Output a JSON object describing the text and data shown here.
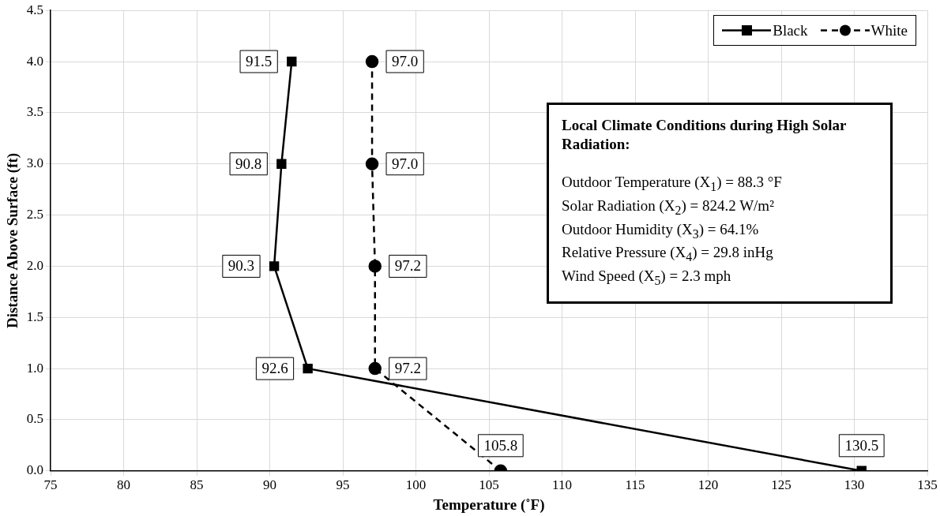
{
  "chart_data": {
    "type": "line",
    "xlabel": "Temperature (˚F)",
    "ylabel": "Distance Above Surface (ft)",
    "xlim": [
      75,
      135
    ],
    "xticks": [
      75,
      80,
      85,
      90,
      95,
      100,
      105,
      110,
      115,
      120,
      125,
      130,
      135
    ],
    "ylim": [
      0,
      4.5
    ],
    "yticks": [
      {
        "value": 0,
        "label": "0.0"
      },
      {
        "value": 0.5,
        "label": "0.5"
      },
      {
        "value": 1,
        "label": "1.0"
      },
      {
        "value": 1.5,
        "label": "1.5"
      },
      {
        "value": 2,
        "label": "2.0"
      },
      {
        "value": 2.5,
        "label": "2.5"
      },
      {
        "value": 3,
        "label": "3.0"
      },
      {
        "value": 3.5,
        "label": "3.5"
      },
      {
        "value": 4,
        "label": "4.0"
      },
      {
        "value": 4.5,
        "label": "4.5"
      }
    ],
    "grid": true,
    "legend": "top right",
    "series": [
      {
        "name": "Black",
        "color": "#000000",
        "marker": "square",
        "line_style": "solid",
        "x": [
          130.5,
          92.6,
          90.3,
          90.8,
          91.5
        ],
        "values": [
          0,
          1,
          2,
          3,
          4
        ]
      },
      {
        "name": "White",
        "color": "#000000",
        "marker": "circle",
        "line_style": "dashed",
        "x": [
          105.8,
          97.2,
          97.2,
          97.0,
          97.0
        ],
        "values": [
          0,
          1,
          2,
          3,
          4
        ]
      }
    ],
    "annotations": [
      {
        "text": "130.5",
        "x": 130.5,
        "y": 0
      },
      {
        "text": "92.6",
        "x": 92.6,
        "y": 1
      },
      {
        "text": "90.3",
        "x": 90.3,
        "y": 2
      },
      {
        "text": "90.8",
        "x": 90.8,
        "y": 3
      },
      {
        "text": "91.5",
        "x": 91.5,
        "y": 4
      },
      {
        "text": "105.8",
        "x": 105.8,
        "y": 0
      },
      {
        "text": "97.2",
        "x": 97.2,
        "y": 1
      },
      {
        "text": "97.2",
        "x": 97.2,
        "y": 2
      },
      {
        "text": "97.0",
        "x": 97.0,
        "y": 3
      },
      {
        "text": "97.0",
        "x": 97.0,
        "y": 4
      },
      "Local Climate Conditions during High Solar Radiation:",
      "Outdoor Temperature (X$_{1}$) = 88.3 °F",
      "Solar Radiation (X$_{2}$) = 824.2 W/m²",
      "Outdoor Humidity (X$_{3}$) = 64.1%",
      "Relative Pressure (X$_{4}$) = 29.8 inHg",
      "Wind Speed (X$_{5}$) = 2.3 mph"
    ]
  }
}
